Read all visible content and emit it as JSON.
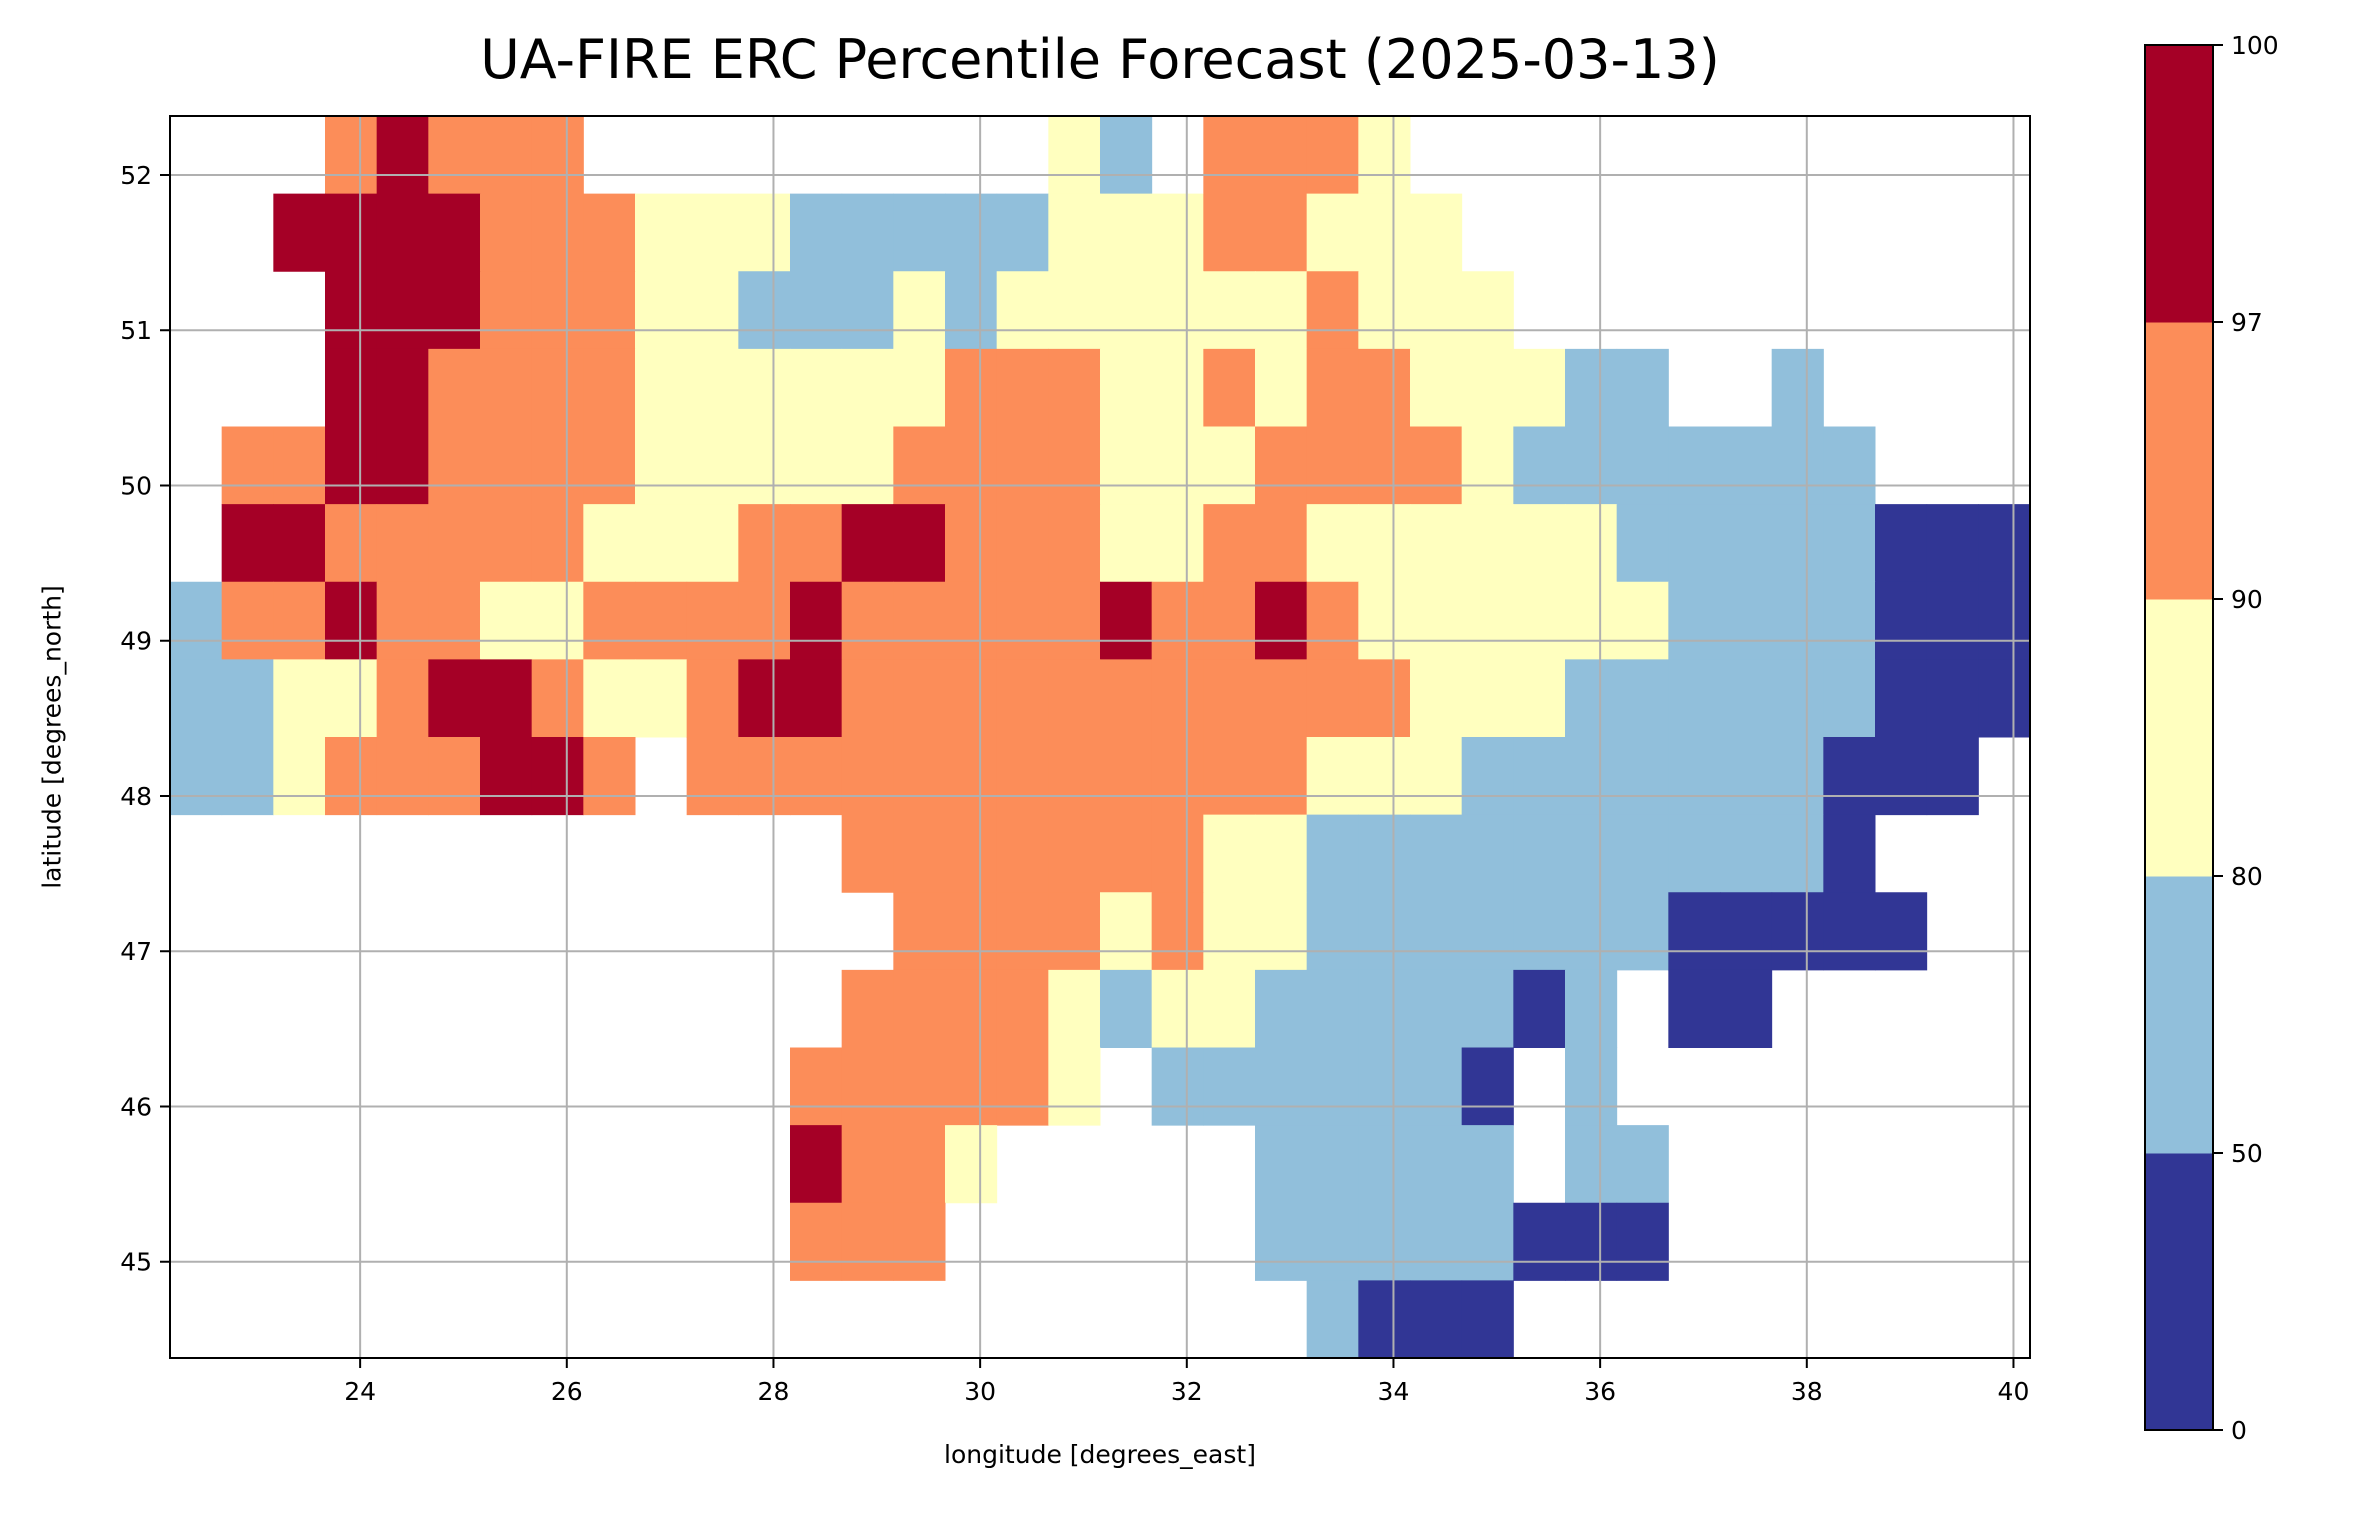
{
  "chart_data": {
    "type": "heatmap",
    "title": "UA-FIRE ERC Percentile Forecast (2025-03-13)",
    "xlabel": "longitude [degrees_east]",
    "ylabel": "latitude [degrees_north]",
    "xlim": [
      22.16,
      40.16
    ],
    "ylim": [
      44.38,
      52.38
    ],
    "xticks": [
      "24",
      "26",
      "28",
      "30",
      "32",
      "34",
      "36",
      "38",
      "40"
    ],
    "xtick_values": [
      24,
      26,
      28,
      30,
      32,
      34,
      36,
      38,
      40
    ],
    "yticks": [
      "45",
      "46",
      "47",
      "48",
      "49",
      "50",
      "51",
      "52"
    ],
    "ytick_values": [
      45,
      46,
      47,
      48,
      49,
      50,
      51,
      52
    ],
    "grid": true,
    "colorbar": {
      "boundaries": [
        "0",
        "50",
        "80",
        "90",
        "97",
        "100"
      ],
      "colors": [
        "#313695",
        "#91bfdb",
        "#ffffbf",
        "#fc8d59",
        "#a50026"
      ],
      "placement": "right"
    },
    "grid_resolution_deg": 0.5,
    "grid_origin": {
      "lon_west": 22.16,
      "lat_north": 52.38
    },
    "grid_legend": "rows from north to south, columns from west to east; digit = colour class index (0: 0-50, 1: 50-80, 2: 80-90, 3: 90-97, 4: 97-100); '.' = no data",
    "grid_rows": [
      "...34333.........21.3332............",
      "..44443332221111122233222...........",
      "...44433322111212222223222..........",
      "...44333322222233322323322211..1....",
      ".33443333222223333222333321111111...",
      ".44333332223344333223322222211111000",
      "133433223333433333433432222221111000",
      "112234432234433333333333222111111000",
      "112333443.3333333333332221111111000.",
      ".............33333332211111111110...",
      "..............33332322111111100000...",
      ".............333321221111101 00......",
      "............333332.1111110 1.........",
      "............4332.....11111.11.......",
      "............333......11111000.......",
      "......................1000.........."
    ]
  }
}
